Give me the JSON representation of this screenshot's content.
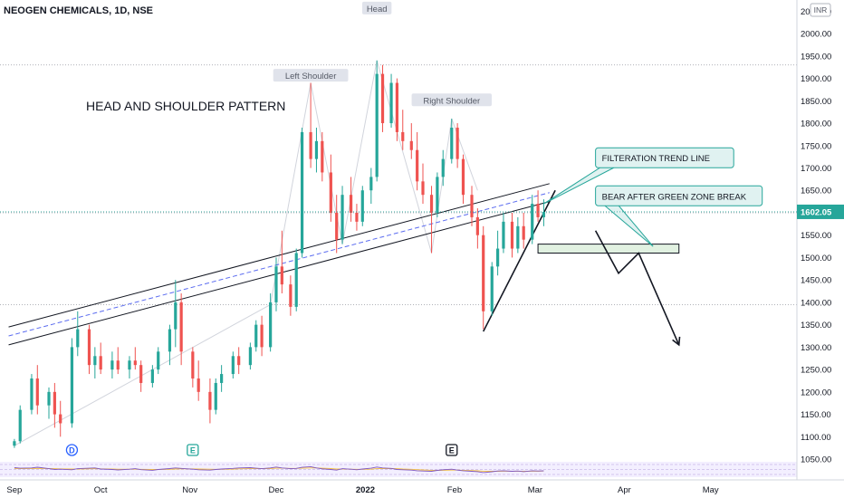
{
  "symbol_header": "NEOGEN CHEMICALS, 1D, NSE",
  "currency_badge": "INR",
  "chart_data": {
    "type": "candlestick",
    "title": "HEAD AND SHOULDER PATTERN",
    "y_axis": {
      "position": "right",
      "ticks": [
        2050,
        2000,
        1950,
        1900,
        1850,
        1800,
        1750,
        1700,
        1650,
        1600,
        1550,
        1500,
        1450,
        1400,
        1350,
        1300,
        1250,
        1200,
        1150,
        1100,
        1050
      ],
      "ylim": [
        1040,
        2075
      ]
    },
    "x_axis": {
      "labels": [
        "Sep",
        "Oct",
        "Nov",
        "Dec",
        "2022",
        "Feb",
        "Mar",
        "Apr",
        "May"
      ],
      "label_dates": [
        "2021-09-01",
        "2021-10-01",
        "2021-11-01",
        "2021-12-01",
        "2022-01-01",
        "2022-02-01",
        "2022-03-01",
        "2022-04-01",
        "2022-05-01"
      ],
      "range": [
        "2021-08-27",
        "2022-05-31"
      ]
    },
    "current_price": {
      "value": 1602.05,
      "label": "1602.05",
      "color": "#26a69a"
    },
    "reference_lines": [
      1930,
      1600,
      1395
    ],
    "colors": {
      "up": "#26a69a",
      "down": "#ef5350"
    },
    "candles": [
      {
        "date": "2021-09-01",
        "o": 1080,
        "h": 1095,
        "l": 1075,
        "c": 1090
      },
      {
        "date": "2021-09-03",
        "o": 1090,
        "h": 1170,
        "l": 1085,
        "c": 1160
      },
      {
        "date": "2021-09-07",
        "o": 1160,
        "h": 1240,
        "l": 1150,
        "c": 1230
      },
      {
        "date": "2021-09-09",
        "o": 1230,
        "h": 1260,
        "l": 1150,
        "c": 1170
      },
      {
        "date": "2021-09-13",
        "o": 1170,
        "h": 1210,
        "l": 1140,
        "c": 1200
      },
      {
        "date": "2021-09-15",
        "o": 1200,
        "h": 1220,
        "l": 1120,
        "c": 1150
      },
      {
        "date": "2021-09-17",
        "o": 1150,
        "h": 1180,
        "l": 1100,
        "c": 1130
      },
      {
        "date": "2021-09-21",
        "o": 1130,
        "h": 1320,
        "l": 1120,
        "c": 1300
      },
      {
        "date": "2021-09-23",
        "o": 1300,
        "h": 1380,
        "l": 1280,
        "c": 1340
      },
      {
        "date": "2021-09-27",
        "o": 1340,
        "h": 1350,
        "l": 1240,
        "c": 1260
      },
      {
        "date": "2021-09-29",
        "o": 1260,
        "h": 1300,
        "l": 1230,
        "c": 1280
      },
      {
        "date": "2021-10-01",
        "o": 1280,
        "h": 1310,
        "l": 1240,
        "c": 1250
      },
      {
        "date": "2021-10-05",
        "o": 1250,
        "h": 1290,
        "l": 1230,
        "c": 1270
      },
      {
        "date": "2021-10-07",
        "o": 1270,
        "h": 1300,
        "l": 1240,
        "c": 1250
      },
      {
        "date": "2021-10-11",
        "o": 1250,
        "h": 1280,
        "l": 1230,
        "c": 1270
      },
      {
        "date": "2021-10-13",
        "o": 1270,
        "h": 1300,
        "l": 1250,
        "c": 1260
      },
      {
        "date": "2021-10-15",
        "o": 1260,
        "h": 1270,
        "l": 1200,
        "c": 1220
      },
      {
        "date": "2021-10-19",
        "o": 1220,
        "h": 1260,
        "l": 1210,
        "c": 1250
      },
      {
        "date": "2021-10-21",
        "o": 1250,
        "h": 1300,
        "l": 1240,
        "c": 1290
      },
      {
        "date": "2021-10-25",
        "o": 1290,
        "h": 1350,
        "l": 1260,
        "c": 1340
      },
      {
        "date": "2021-10-27",
        "o": 1340,
        "h": 1450,
        "l": 1300,
        "c": 1400
      },
      {
        "date": "2021-10-29",
        "o": 1400,
        "h": 1420,
        "l": 1260,
        "c": 1290
      },
      {
        "date": "2021-11-02",
        "o": 1290,
        "h": 1300,
        "l": 1210,
        "c": 1230
      },
      {
        "date": "2021-11-04",
        "o": 1230,
        "h": 1270,
        "l": 1180,
        "c": 1200
      },
      {
        "date": "2021-11-08",
        "o": 1200,
        "h": 1230,
        "l": 1130,
        "c": 1160
      },
      {
        "date": "2021-11-10",
        "o": 1160,
        "h": 1230,
        "l": 1150,
        "c": 1220
      },
      {
        "date": "2021-11-12",
        "o": 1220,
        "h": 1260,
        "l": 1200,
        "c": 1240
      },
      {
        "date": "2021-11-16",
        "o": 1240,
        "h": 1290,
        "l": 1230,
        "c": 1280
      },
      {
        "date": "2021-11-18",
        "o": 1280,
        "h": 1300,
        "l": 1240,
        "c": 1260
      },
      {
        "date": "2021-11-22",
        "o": 1260,
        "h": 1310,
        "l": 1250,
        "c": 1300
      },
      {
        "date": "2021-11-24",
        "o": 1300,
        "h": 1360,
        "l": 1290,
        "c": 1350
      },
      {
        "date": "2021-11-26",
        "o": 1350,
        "h": 1370,
        "l": 1280,
        "c": 1300
      },
      {
        "date": "2021-11-29",
        "o": 1300,
        "h": 1420,
        "l": 1290,
        "c": 1400
      },
      {
        "date": "2021-12-01",
        "o": 1400,
        "h": 1500,
        "l": 1380,
        "c": 1480
      },
      {
        "date": "2021-12-03",
        "o": 1480,
        "h": 1560,
        "l": 1420,
        "c": 1440
      },
      {
        "date": "2021-12-06",
        "o": 1440,
        "h": 1460,
        "l": 1370,
        "c": 1390
      },
      {
        "date": "2021-12-08",
        "o": 1390,
        "h": 1520,
        "l": 1380,
        "c": 1510
      },
      {
        "date": "2021-12-10",
        "o": 1510,
        "h": 1790,
        "l": 1500,
        "c": 1780
      },
      {
        "date": "2021-12-13",
        "o": 1780,
        "h": 1890,
        "l": 1700,
        "c": 1720
      },
      {
        "date": "2021-12-15",
        "o": 1720,
        "h": 1790,
        "l": 1690,
        "c": 1760
      },
      {
        "date": "2021-12-17",
        "o": 1760,
        "h": 1780,
        "l": 1670,
        "c": 1690
      },
      {
        "date": "2021-12-20",
        "o": 1690,
        "h": 1730,
        "l": 1580,
        "c": 1600
      },
      {
        "date": "2021-12-22",
        "o": 1600,
        "h": 1640,
        "l": 1510,
        "c": 1540
      },
      {
        "date": "2021-12-24",
        "o": 1540,
        "h": 1660,
        "l": 1530,
        "c": 1640
      },
      {
        "date": "2021-12-27",
        "o": 1640,
        "h": 1680,
        "l": 1580,
        "c": 1600
      },
      {
        "date": "2021-12-29",
        "o": 1600,
        "h": 1620,
        "l": 1560,
        "c": 1580
      },
      {
        "date": "2021-12-31",
        "o": 1580,
        "h": 1660,
        "l": 1570,
        "c": 1650
      },
      {
        "date": "2022-01-03",
        "o": 1650,
        "h": 1700,
        "l": 1620,
        "c": 1680
      },
      {
        "date": "2022-01-05",
        "o": 1680,
        "h": 1940,
        "l": 1670,
        "c": 1910
      },
      {
        "date": "2022-01-07",
        "o": 1910,
        "h": 1930,
        "l": 1780,
        "c": 1800
      },
      {
        "date": "2022-01-10",
        "o": 1800,
        "h": 1910,
        "l": 1790,
        "c": 1890
      },
      {
        "date": "2022-01-12",
        "o": 1890,
        "h": 1900,
        "l": 1760,
        "c": 1780
      },
      {
        "date": "2022-01-14",
        "o": 1780,
        "h": 1830,
        "l": 1740,
        "c": 1760
      },
      {
        "date": "2022-01-17",
        "o": 1760,
        "h": 1800,
        "l": 1720,
        "c": 1740
      },
      {
        "date": "2022-01-19",
        "o": 1740,
        "h": 1780,
        "l": 1650,
        "c": 1670
      },
      {
        "date": "2022-01-21",
        "o": 1670,
        "h": 1710,
        "l": 1620,
        "c": 1640
      },
      {
        "date": "2022-01-24",
        "o": 1640,
        "h": 1660,
        "l": 1510,
        "c": 1600
      },
      {
        "date": "2022-01-26",
        "o": 1600,
        "h": 1690,
        "l": 1590,
        "c": 1680
      },
      {
        "date": "2022-01-28",
        "o": 1680,
        "h": 1740,
        "l": 1660,
        "c": 1720
      },
      {
        "date": "2022-01-31",
        "o": 1720,
        "h": 1810,
        "l": 1710,
        "c": 1790
      },
      {
        "date": "2022-02-02",
        "o": 1790,
        "h": 1800,
        "l": 1700,
        "c": 1720
      },
      {
        "date": "2022-02-04",
        "o": 1720,
        "h": 1730,
        "l": 1620,
        "c": 1640
      },
      {
        "date": "2022-02-07",
        "o": 1640,
        "h": 1660,
        "l": 1570,
        "c": 1590
      },
      {
        "date": "2022-02-09",
        "o": 1590,
        "h": 1610,
        "l": 1520,
        "c": 1550
      },
      {
        "date": "2022-02-11",
        "o": 1550,
        "h": 1570,
        "l": 1340,
        "c": 1380
      },
      {
        "date": "2022-02-14",
        "o": 1380,
        "h": 1490,
        "l": 1370,
        "c": 1480
      },
      {
        "date": "2022-02-16",
        "o": 1480,
        "h": 1560,
        "l": 1460,
        "c": 1520
      },
      {
        "date": "2022-02-18",
        "o": 1520,
        "h": 1600,
        "l": 1510,
        "c": 1580
      },
      {
        "date": "2022-02-21",
        "o": 1580,
        "h": 1600,
        "l": 1500,
        "c": 1520
      },
      {
        "date": "2022-02-23",
        "o": 1520,
        "h": 1590,
        "l": 1510,
        "c": 1570
      },
      {
        "date": "2022-02-25",
        "o": 1570,
        "h": 1600,
        "l": 1520,
        "c": 1540
      },
      {
        "date": "2022-02-28",
        "o": 1540,
        "h": 1640,
        "l": 1530,
        "c": 1620
      },
      {
        "date": "2022-03-02",
        "o": 1620,
        "h": 1650,
        "l": 1580,
        "c": 1590
      },
      {
        "date": "2022-03-04",
        "o": 1590,
        "h": 1630,
        "l": 1570,
        "c": 1602
      }
    ],
    "pattern_line": [
      {
        "date": "2021-09-01",
        "v": 1080
      },
      {
        "date": "2021-11-29",
        "v": 1395
      },
      {
        "date": "2021-12-13",
        "v": 1890
      },
      {
        "date": "2021-12-24",
        "v": 1530
      },
      {
        "date": "2022-01-05",
        "v": 1940
      },
      {
        "date": "2022-01-24",
        "v": 1510
      },
      {
        "date": "2022-01-31",
        "v": 1810
      },
      {
        "date": "2022-02-09",
        "v": 1650
      }
    ],
    "channel_upper": [
      {
        "date": "2021-08-30",
        "v": 1345
      },
      {
        "date": "2022-03-06",
        "v": 1665
      }
    ],
    "channel_mid": [
      {
        "date": "2021-08-30",
        "v": 1325
      },
      {
        "date": "2022-03-06",
        "v": 1645
      }
    ],
    "channel_lower": [
      {
        "date": "2021-08-30",
        "v": 1305
      },
      {
        "date": "2022-03-06",
        "v": 1625
      }
    ],
    "trend_line": [
      {
        "date": "2022-02-11",
        "v": 1335
      },
      {
        "date": "2022-03-08",
        "v": 1650
      }
    ],
    "projection": [
      {
        "date": "2022-03-22",
        "v": 1560
      },
      {
        "date": "2022-03-30",
        "v": 1465
      },
      {
        "date": "2022-04-06",
        "v": 1510
      },
      {
        "date": "2022-04-20",
        "v": 1305
      }
    ],
    "green_zone": {
      "from": "2022-03-02",
      "to": "2022-04-20",
      "top": 1530,
      "bottom": 1510
    },
    "annotations": [
      {
        "text": "Head",
        "date": "2022-01-05",
        "v": 2055
      },
      {
        "text": "Left Shoulder",
        "date": "2021-12-13",
        "v": 1905
      },
      {
        "text": "Right Shoulder",
        "date": "2022-01-31",
        "v": 1850
      }
    ],
    "callouts": [
      {
        "text": "FILTERATION TREND LINE",
        "date": "2022-03-22",
        "v": 1745,
        "anchor_date": "2022-03-04",
        "anchor_v": 1620
      },
      {
        "text": "BEAR AFTER GREEN ZONE BREAK",
        "date": "2022-03-22",
        "v": 1660,
        "anchor_date": "2022-04-11",
        "anchor_v": 1525
      }
    ],
    "event_markers": [
      {
        "text": "D",
        "date": "2021-09-21",
        "style": "dividend"
      },
      {
        "text": "E",
        "date": "2021-11-02",
        "style": "earnings-green"
      },
      {
        "text": "E",
        "date": "2022-01-31",
        "style": "earnings-dark"
      }
    ],
    "indicator": {
      "values": [
        0.62,
        0.58,
        0.6,
        0.65,
        0.55,
        0.5,
        0.52,
        0.48,
        0.55,
        0.58,
        0.6,
        0.53,
        0.5,
        0.47,
        0.52,
        0.55,
        0.49,
        0.45,
        0.5,
        0.56,
        0.6,
        0.57,
        0.52,
        0.48,
        0.46,
        0.5,
        0.53,
        0.57,
        0.6,
        0.62,
        0.58,
        0.55,
        0.6,
        0.66,
        0.6,
        0.55,
        0.57,
        0.64,
        0.68,
        0.6,
        0.54,
        0.5,
        0.46,
        0.55,
        0.52,
        0.48,
        0.53,
        0.58,
        0.66,
        0.6,
        0.57,
        0.5,
        0.48,
        0.46,
        0.42,
        0.4,
        0.38,
        0.44,
        0.48,
        0.52,
        0.46,
        0.42,
        0.38,
        0.36,
        0.3,
        0.35,
        0.4,
        0.42,
        0.38,
        0.4,
        0.36,
        0.42,
        0.4,
        0.41
      ],
      "signal": [
        0.55,
        0.55,
        0.56,
        0.57,
        0.56,
        0.55,
        0.54,
        0.53,
        0.53,
        0.54,
        0.55,
        0.54,
        0.53,
        0.52,
        0.52,
        0.52,
        0.51,
        0.5,
        0.5,
        0.51,
        0.53,
        0.54,
        0.54,
        0.53,
        0.52,
        0.51,
        0.51,
        0.52,
        0.54,
        0.55,
        0.56,
        0.56,
        0.56,
        0.58,
        0.58,
        0.57,
        0.57,
        0.58,
        0.6,
        0.6,
        0.58,
        0.56,
        0.53,
        0.53,
        0.52,
        0.51,
        0.51,
        0.52,
        0.55,
        0.56,
        0.56,
        0.55,
        0.53,
        0.51,
        0.49,
        0.47,
        0.45,
        0.44,
        0.45,
        0.46,
        0.46,
        0.45,
        0.43,
        0.41,
        0.39,
        0.38,
        0.38,
        0.39,
        0.39,
        0.39,
        0.38,
        0.39,
        0.39,
        0.4
      ]
    }
  }
}
